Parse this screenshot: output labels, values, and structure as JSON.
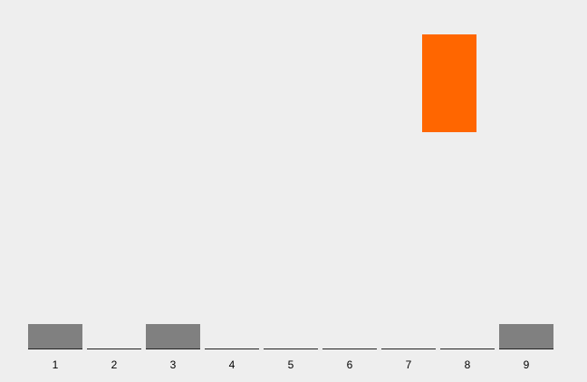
{
  "colors": {
    "background": "#eeeeee",
    "stacked_block": "#808080",
    "falling_block": "#ff6600",
    "baseline": "#222222"
  },
  "slots": [
    {
      "label": "1",
      "filled": true
    },
    {
      "label": "2",
      "filled": false
    },
    {
      "label": "3",
      "filled": true
    },
    {
      "label": "4",
      "filled": false
    },
    {
      "label": "5",
      "filled": false
    },
    {
      "label": "6",
      "filled": false
    },
    {
      "label": "7",
      "filled": false
    },
    {
      "label": "8",
      "filled": false
    },
    {
      "label": "9",
      "filled": true
    }
  ],
  "falling_block": {
    "column": "8"
  }
}
